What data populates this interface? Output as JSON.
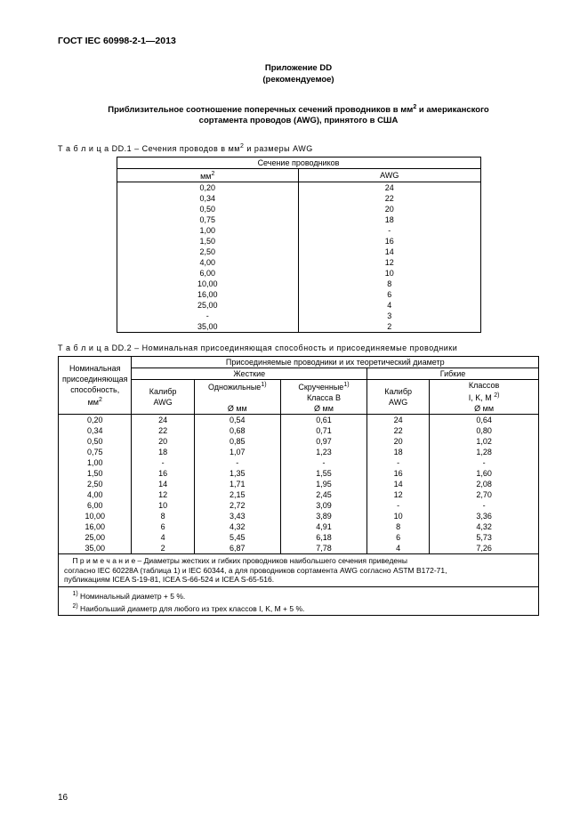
{
  "doc_code": "ГОСТ IEC 60998-2-1—2013",
  "appendix": {
    "title": "Приложение DD",
    "sub": "(рекомендуемое)"
  },
  "main_heading_l1": "Приблизительное соотношение поперечных сечений проводников в мм",
  "main_heading_sup": "2",
  "main_heading_l1b": " и американского",
  "main_heading_l2": "сортамента проводов (AWG), принятого в США",
  "t1": {
    "caption_prefix": "Т а б л и ц а  DD.1 – Сечения проводов в мм",
    "caption_sup": "2",
    "caption_suffix": " и размеры AWG",
    "header1": "Сечение проводников",
    "col1": "мм",
    "col1_sup": "2",
    "col2": "AWG",
    "rows": [
      {
        "mm": "0,20",
        "awg": "24"
      },
      {
        "mm": "0,34",
        "awg": "22"
      },
      {
        "mm": "0,50",
        "awg": "20"
      },
      {
        "mm": "0,75",
        "awg": "18"
      },
      {
        "mm": "1,00",
        "awg": "-"
      },
      {
        "mm": "1,50",
        "awg": "16"
      },
      {
        "mm": "2,50",
        "awg": "14"
      },
      {
        "mm": "4,00",
        "awg": "12"
      },
      {
        "mm": "6,00",
        "awg": "10"
      },
      {
        "mm": "10,00",
        "awg": "8"
      },
      {
        "mm": "16,00",
        "awg": "6"
      },
      {
        "mm": "25,00",
        "awg": "4"
      },
      {
        "mm": "-",
        "awg": "3"
      },
      {
        "mm": "35,00",
        "awg": "2"
      }
    ]
  },
  "t2": {
    "caption": "Т а б л и ц а  DD.2 – Номинальная присоединяющая способность и присоединяемые проводники",
    "h_nominal_l1": "Номинальная",
    "h_nominal_l2": "присоединяющая",
    "h_nominal_l3": "способность, мм",
    "h_nominal_sup": "2",
    "h_top": "Присоединяемые проводники и их теоретический диаметр",
    "h_rigid": "Жесткие",
    "h_flex": "Гибкие",
    "h_cal": "Калибр",
    "h_awg": "AWG",
    "h_single": "Одножильные",
    "h_sup1": "1)",
    "h_diam": "Ø мм",
    "h_strand_l1": "Скрученные",
    "h_strand_l2": "Класса B",
    "h_class_l1": "Классов",
    "h_class_l2": "I, K, M",
    "h_sup2": "2)",
    "rows": [
      {
        "n": "0,20",
        "a": "24",
        "b": "0,54",
        "c": "0,61",
        "d": "24",
        "e": "0,64"
      },
      {
        "n": "0,34",
        "a": "22",
        "b": "0,68",
        "c": "0,71",
        "d": "22",
        "e": "0,80"
      },
      {
        "n": "0,50",
        "a": "20",
        "b": "0,85",
        "c": "0,97",
        "d": "20",
        "e": "1,02"
      },
      {
        "n": "0,75",
        "a": "18",
        "b": "1,07",
        "c": "1,23",
        "d": "18",
        "e": "1,28"
      },
      {
        "n": "1,00",
        "a": "-",
        "b": "-",
        "c": "-",
        "d": "-",
        "e": "-"
      },
      {
        "n": "1,50",
        "a": "16",
        "b": "1,35",
        "c": "1,55",
        "d": "16",
        "e": "1,60"
      },
      {
        "n": "2,50",
        "a": "14",
        "b": "1,71",
        "c": "1,95",
        "d": "14",
        "e": "2,08"
      },
      {
        "n": "4,00",
        "a": "12",
        "b": "2,15",
        "c": "2,45",
        "d": "12",
        "e": "2,70"
      },
      {
        "n": "6,00",
        "a": "10",
        "b": "2,72",
        "c": "3,09",
        "d": "-",
        "e": "-"
      },
      {
        "n": "10,00",
        "a": "8",
        "b": "3,43",
        "c": "3,89",
        "d": "10",
        "e": "3,36"
      },
      {
        "n": "16,00",
        "a": "6",
        "b": "4,32",
        "c": "4,91",
        "d": "8",
        "e": "4,32"
      },
      {
        "n": "25,00",
        "a": "4",
        "b": "5,45",
        "c": "6,18",
        "d": "6",
        "e": "5,73"
      },
      {
        "n": "35,00",
        "a": "2",
        "b": "6,87",
        "c": "7,78",
        "d": "4",
        "e": "7,26"
      }
    ],
    "note_line1": "П р и м е ч а н и е – Диаметры жестких и гибких проводников наибольшего сечения приведены",
    "note_line2": "согласно IEC 60228A (таблица 1) и IEC 60344, а для проводников сортамента AWG согласно ASTM B172-71,",
    "note_line3": "публикациям ICEA S-19-81, ICEA S-66-524 и ICEA S-65-516.",
    "fn1_sup": "1)",
    "fn1": " Номинальный диаметр + 5 %.",
    "fn2_sup": "2)",
    "fn2": " Наибольший диаметр для любого из трех классов I, K, M + 5 %."
  },
  "page_num": "16"
}
